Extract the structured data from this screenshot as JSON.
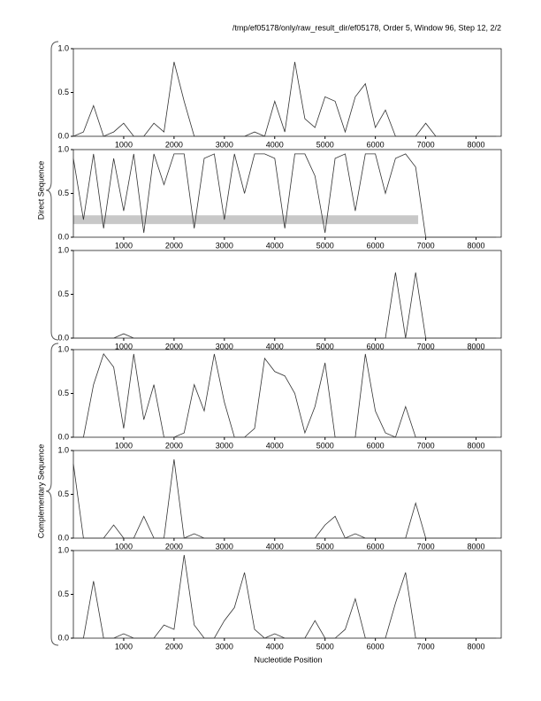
{
  "header": "/tmp/ef05178/only/raw_result_dir/ef05178, Order 5, Window 96, Step 12, 2/2",
  "groups": [
    "Direct Sequence",
    "Complementary Sequence"
  ],
  "xlabel": "Nucleotide Position",
  "chart_data": [
    {
      "type": "line",
      "color": "#333333",
      "x": [
        0,
        200,
        400,
        600,
        800,
        1000,
        1200,
        1400,
        1600,
        1800,
        2000,
        2200,
        2400,
        2600,
        2800,
        3000,
        3200,
        3400,
        3600,
        3800,
        4000,
        4200,
        4400,
        4600,
        4800,
        5000,
        5200,
        5400,
        5600,
        5800,
        6000,
        6200,
        6400,
        6600,
        6800,
        7000,
        7200,
        7400,
        7600,
        7800,
        8000,
        8200,
        8400
      ],
      "values": [
        0,
        0.05,
        0.35,
        0,
        0.05,
        0.15,
        0,
        0,
        0.15,
        0.05,
        0.85,
        0.4,
        0,
        0,
        0,
        0,
        0,
        0,
        0.05,
        0,
        0.4,
        0.05,
        0.85,
        0.2,
        0.1,
        0.45,
        0.4,
        0.05,
        0.45,
        0.6,
        0.1,
        0.3,
        0,
        0,
        0,
        0.15,
        0,
        0,
        0,
        0,
        0,
        0,
        0
      ],
      "xlim": [
        0,
        8500
      ],
      "ylim": [
        0,
        1
      ],
      "xticks": [
        1000,
        2000,
        3000,
        4000,
        5000,
        6000,
        7000,
        8000
      ],
      "yticks": [
        {
          "value": 0,
          "label": "0.0"
        },
        {
          "value": 0.5,
          "label": "0.5"
        },
        {
          "value": 1,
          "label": "1.0"
        }
      ]
    },
    {
      "type": "line",
      "color": "#333333",
      "x": [
        0,
        200,
        400,
        600,
        800,
        1000,
        1200,
        1400,
        1600,
        1800,
        2000,
        2200,
        2400,
        2600,
        2800,
        3000,
        3200,
        3400,
        3600,
        3800,
        4000,
        4200,
        4400,
        4600,
        4800,
        5000,
        5200,
        5400,
        5600,
        5800,
        6000,
        6200,
        6400,
        6600,
        6800,
        7000,
        7200,
        7400,
        7600,
        7800,
        8000,
        8200,
        8400
      ],
      "values": [
        0.9,
        0.2,
        0.95,
        0.1,
        0.9,
        0.3,
        0.95,
        0.05,
        0.95,
        0.6,
        0.95,
        0.95,
        0.1,
        0.9,
        0.95,
        0.2,
        0.95,
        0.5,
        0.95,
        0.95,
        0.9,
        0.1,
        0.95,
        0.95,
        0.7,
        0.05,
        0.9,
        0.95,
        0.3,
        0.95,
        0.95,
        0.5,
        0.9,
        0.95,
        0.8,
        0,
        0,
        0,
        0,
        0,
        0,
        0,
        0
      ],
      "band": {
        "x": [
          0,
          6850
        ],
        "y": [
          0.15,
          0.25
        ],
        "color": "#c8c8c8"
      },
      "xlim": [
        0,
        8500
      ],
      "ylim": [
        0,
        1
      ],
      "xticks": [
        1000,
        2000,
        3000,
        4000,
        5000,
        6000,
        7000,
        8000
      ],
      "yticks": [
        {
          "value": 0,
          "label": "0.0"
        },
        {
          "value": 0.5,
          "label": "0.5"
        },
        {
          "value": 1,
          "label": "1.0"
        }
      ]
    },
    {
      "type": "line",
      "color": "#333333",
      "x": [
        0,
        200,
        400,
        600,
        800,
        1000,
        1200,
        1400,
        1600,
        1800,
        2000,
        2200,
        2400,
        2600,
        2800,
        3000,
        3200,
        3400,
        3600,
        3800,
        4000,
        4200,
        4400,
        4600,
        4800,
        5000,
        5200,
        5400,
        5600,
        5800,
        6000,
        6200,
        6400,
        6600,
        6800,
        7000,
        7200,
        7400,
        7600,
        7800,
        8000,
        8200,
        8400
      ],
      "values": [
        0,
        0,
        0,
        0,
        0,
        0.05,
        0,
        0,
        0,
        0,
        0,
        0,
        0,
        0,
        0,
        0,
        0,
        0,
        0,
        0,
        0,
        0,
        0,
        0,
        0,
        0,
        0,
        0,
        0,
        0,
        0,
        0,
        0.75,
        0,
        0.75,
        0,
        0,
        0,
        0,
        0,
        0,
        0,
        0
      ],
      "xlim": [
        0,
        8500
      ],
      "ylim": [
        0,
        1
      ],
      "xticks": [
        1000,
        2000,
        3000,
        4000,
        5000,
        6000,
        7000,
        8000
      ],
      "yticks": [
        {
          "value": 0,
          "label": "0.0"
        },
        {
          "value": 0.5,
          "label": "0.5"
        },
        {
          "value": 1,
          "label": "1.0"
        }
      ]
    },
    {
      "type": "line",
      "color": "#333333",
      "x": [
        0,
        200,
        400,
        600,
        800,
        1000,
        1200,
        1400,
        1600,
        1800,
        2000,
        2200,
        2400,
        2600,
        2800,
        3000,
        3200,
        3400,
        3600,
        3800,
        4000,
        4200,
        4400,
        4600,
        4800,
        5000,
        5200,
        5400,
        5600,
        5800,
        6000,
        6200,
        6400,
        6600,
        6800,
        7000,
        7200,
        7400,
        7600,
        7800,
        8000,
        8200,
        8400
      ],
      "values": [
        0,
        0,
        0.6,
        0.95,
        0.8,
        0.1,
        0.95,
        0.2,
        0.6,
        0,
        0,
        0.05,
        0.6,
        0.3,
        0.95,
        0.4,
        0,
        0,
        0.1,
        0.9,
        0.75,
        0.7,
        0.5,
        0.05,
        0.35,
        0.85,
        0,
        0,
        0,
        0.95,
        0.3,
        0.05,
        0,
        0.35,
        0,
        0,
        0,
        0,
        0,
        0,
        0,
        0,
        0
      ],
      "xlim": [
        0,
        8500
      ],
      "ylim": [
        0,
        1
      ],
      "xticks": [
        1000,
        2000,
        3000,
        4000,
        5000,
        6000,
        7000,
        8000
      ],
      "yticks": [
        {
          "value": 0,
          "label": "0.0"
        },
        {
          "value": 0.5,
          "label": "0.5"
        },
        {
          "value": 1,
          "label": "1.0"
        }
      ]
    },
    {
      "type": "line",
      "color": "#333333",
      "x": [
        0,
        200,
        400,
        600,
        800,
        1000,
        1200,
        1400,
        1600,
        1800,
        2000,
        2200,
        2400,
        2600,
        2800,
        3000,
        3200,
        3400,
        3600,
        3800,
        4000,
        4200,
        4400,
        4600,
        4800,
        5000,
        5200,
        5400,
        5600,
        5800,
        6000,
        6200,
        6400,
        6600,
        6800,
        7000,
        7200,
        7400,
        7600,
        7800,
        8000,
        8200,
        8400
      ],
      "values": [
        0.85,
        0,
        0,
        0,
        0.15,
        0,
        0,
        0.25,
        0,
        0,
        0.9,
        0,
        0.05,
        0,
        0,
        0,
        0,
        0,
        0,
        0,
        0,
        0,
        0,
        0,
        0,
        0.15,
        0.25,
        0,
        0.05,
        0,
        0,
        0,
        0,
        0,
        0.4,
        0,
        0,
        0,
        0,
        0,
        0,
        0,
        0
      ],
      "xlim": [
        0,
        8500
      ],
      "ylim": [
        0,
        1
      ],
      "xticks": [
        1000,
        2000,
        3000,
        4000,
        5000,
        6000,
        7000,
        8000
      ],
      "yticks": [
        {
          "value": 0,
          "label": "0.0"
        },
        {
          "value": 0.5,
          "label": "0.5"
        },
        {
          "value": 1,
          "label": "1.0"
        }
      ]
    },
    {
      "type": "line",
      "color": "#333333",
      "x": [
        0,
        200,
        400,
        600,
        800,
        1000,
        1200,
        1400,
        1600,
        1800,
        2000,
        2200,
        2400,
        2600,
        2800,
        3000,
        3200,
        3400,
        3600,
        3800,
        4000,
        4200,
        4400,
        4600,
        4800,
        5000,
        5200,
        5400,
        5600,
        5800,
        6000,
        6200,
        6400,
        6600,
        6800,
        7000,
        7200,
        7400,
        7600,
        7800,
        8000,
        8200,
        8400
      ],
      "values": [
        0,
        0,
        0.65,
        0,
        0,
        0.05,
        0,
        0,
        0,
        0.15,
        0.1,
        0.95,
        0.15,
        0,
        0,
        0.2,
        0.35,
        0.75,
        0.1,
        0,
        0.05,
        0,
        0,
        0,
        0.2,
        0,
        0,
        0.1,
        0.45,
        0,
        0,
        0,
        0.4,
        0.75,
        0,
        0,
        0,
        0,
        0,
        0,
        0,
        0,
        0
      ],
      "xlim": [
        0,
        8500
      ],
      "ylim": [
        0,
        1
      ],
      "xticks": [
        1000,
        2000,
        3000,
        4000,
        5000,
        6000,
        7000,
        8000
      ],
      "yticks": [
        {
          "value": 0,
          "label": "0.0"
        },
        {
          "value": 0.5,
          "label": "0.5"
        },
        {
          "value": 1,
          "label": "1.0"
        }
      ]
    }
  ]
}
